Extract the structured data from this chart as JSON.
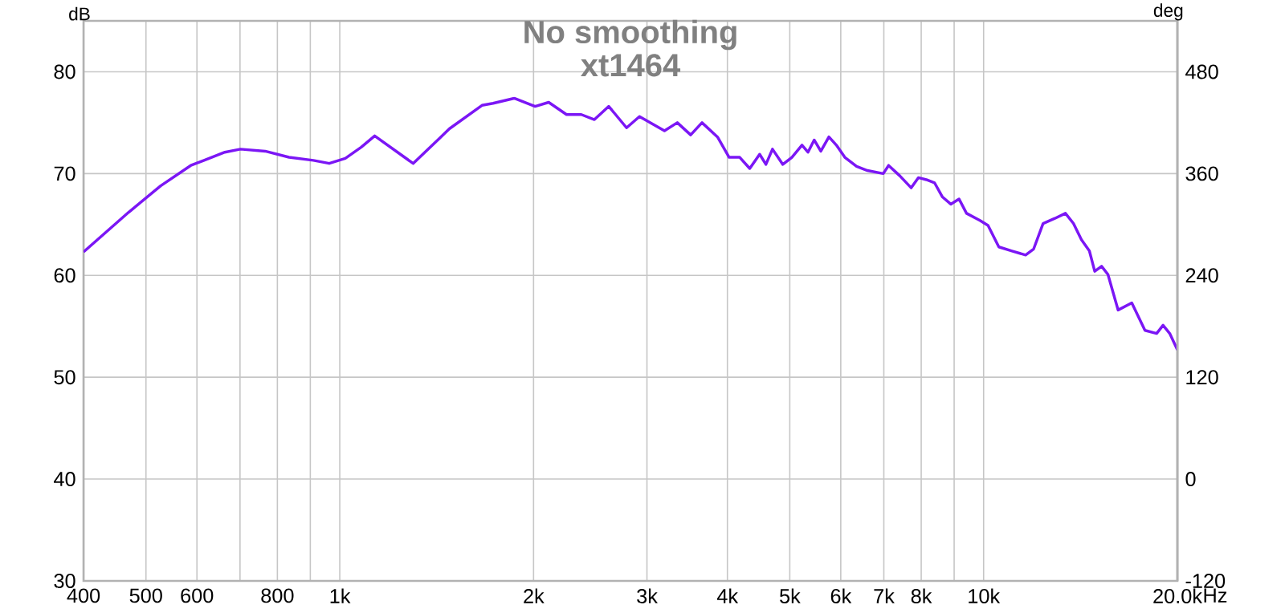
{
  "chart_data": {
    "type": "line",
    "title": "No smoothing",
    "subtitle": "xt1464",
    "ylabel": "dB",
    "y2label": "deg",
    "log": "x",
    "grid": true,
    "marker": "none",
    "line_style": "solid",
    "color": "#7b16f5",
    "xlim": [
      400,
      20000
    ],
    "ylim": [
      30,
      85
    ],
    "y2lim": [
      -120,
      540
    ],
    "xticks": [
      400,
      500,
      600,
      {
        "value": 700,
        "label": null
      },
      800,
      {
        "value": 900,
        "label": null
      },
      {
        "value": 1000,
        "label": "1k"
      },
      {
        "value": 2000,
        "label": "2k"
      },
      {
        "value": 3000,
        "label": "3k"
      },
      {
        "value": 4000,
        "label": "4k"
      },
      {
        "value": 5000,
        "label": "5k"
      },
      {
        "value": 6000,
        "label": "6k"
      },
      {
        "value": 7000,
        "label": "7k"
      },
      {
        "value": 8000,
        "label": "8k"
      },
      {
        "value": 9000,
        "label": null
      },
      {
        "value": 10000,
        "label": "10k"
      },
      {
        "value": 20000,
        "label": "20.0k"
      }
    ],
    "xlabel": "Hz",
    "yticks": [
      30,
      40,
      50,
      60,
      70,
      80
    ],
    "y2ticks": [
      -120,
      0,
      120,
      240,
      360,
      480
    ],
    "x": [
      400,
      470,
      527,
      587,
      663,
      701,
      766,
      834,
      910,
      963,
      1020,
      1080,
      1133,
      1300,
      1425,
      1480,
      1663,
      1730,
      1866,
      2011,
      2111,
      2250,
      2372,
      2486,
      2617,
      2789,
      2921,
      3194,
      3344,
      3508,
      3653,
      3861,
      4025,
      4180,
      4333,
      4489,
      4591,
      4700,
      4877,
      5038,
      5223,
      5336,
      5456,
      5587,
      5751,
      5906,
      6088,
      6350,
      6601,
      6985,
      7120,
      7406,
      7720,
      7920,
      8150,
      8390,
      8633,
      8893,
      9160,
      9408,
      9870,
      10160,
      10560,
      11070,
      11620,
      11960,
      12370,
      12900,
      13400,
      13790,
      14190,
      14600,
      14880,
      15250,
      15600,
      16180,
      16990,
      17810,
      18570,
      19000,
      19460,
      20000
    ],
    "values": [
      62.3,
      66.2,
      68.8,
      70.8,
      72.1,
      72.4,
      72.2,
      71.6,
      71.3,
      71.0,
      71.5,
      72.6,
      73.7,
      71.0,
      73.4,
      74.4,
      76.7,
      76.9,
      77.4,
      76.6,
      77.0,
      75.8,
      75.8,
      75.3,
      76.6,
      74.5,
      75.6,
      74.2,
      75.0,
      73.8,
      75.0,
      73.6,
      71.6,
      71.6,
      70.5,
      71.9,
      70.9,
      72.4,
      70.9,
      71.6,
      72.8,
      72.1,
      73.3,
      72.2,
      73.6,
      72.8,
      71.6,
      70.7,
      70.3,
      70.0,
      70.8,
      69.8,
      68.6,
      69.6,
      69.4,
      69.1,
      67.7,
      67.0,
      67.5,
      66.1,
      65.4,
      64.9,
      62.8,
      62.4,
      62.0,
      62.6,
      65.1,
      65.6,
      66.1,
      65.1,
      63.5,
      62.4,
      60.4,
      60.9,
      60.1,
      56.6,
      57.3,
      54.6,
      54.3,
      55.1,
      54.3,
      52.7
    ]
  }
}
